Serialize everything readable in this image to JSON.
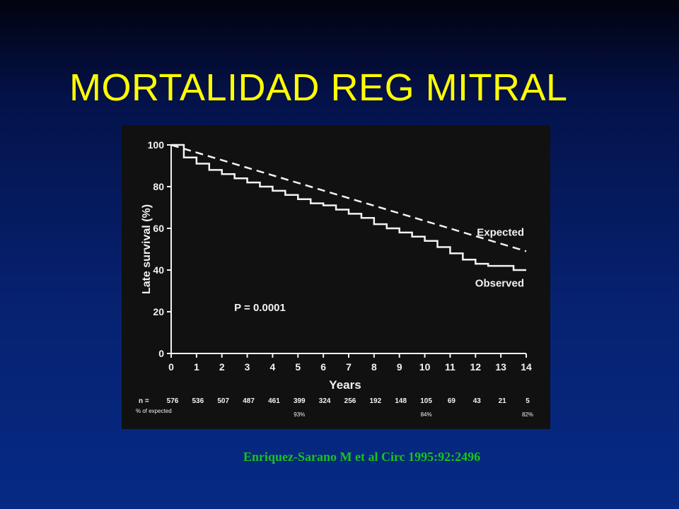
{
  "slide": {
    "title": "MORTALIDAD REG MITRAL",
    "citation": "Enriquez-Sarano  M et al Circ 1995:92:2496"
  },
  "colors": {
    "title": "#ffff00",
    "citation": "#19c419",
    "chart_background": "#111111",
    "chart_ink": "#f2f2f2"
  },
  "chart_data": {
    "type": "line",
    "xlabel": "Years",
    "ylabel": "Late survival (%)",
    "xlim": [
      0,
      14
    ],
    "ylim": [
      0,
      100
    ],
    "x_ticks": [
      0,
      1,
      2,
      3,
      4,
      5,
      6,
      7,
      8,
      9,
      10,
      11,
      12,
      13,
      14
    ],
    "y_ticks": [
      0,
      20,
      40,
      60,
      80,
      100
    ],
    "grid": false,
    "series": [
      {
        "name": "Expected",
        "style": "dashed",
        "x": [
          0,
          14
        ],
        "y": [
          100,
          49
        ]
      },
      {
        "name": "Observed",
        "style": "step",
        "x": [
          0,
          0.5,
          1,
          1.5,
          2,
          2.5,
          3,
          3.5,
          4,
          4.5,
          5,
          5.5,
          6,
          6.5,
          7,
          7.5,
          8,
          8.5,
          9,
          9.5,
          10,
          10.5,
          11,
          11.5,
          12,
          12.5,
          13,
          13.5,
          14
        ],
        "y": [
          100,
          94,
          91,
          88,
          86,
          84,
          82,
          80,
          78,
          76,
          74,
          72,
          71,
          69,
          67,
          65,
          62,
          60,
          58,
          56,
          54,
          51,
          48,
          45,
          43,
          42,
          42,
          40,
          40
        ]
      }
    ],
    "annotations": [
      {
        "text": "P = 0.0001",
        "x": 3.5,
        "y": 22
      }
    ],
    "risk_table": {
      "n_label": "n =",
      "n_at_risk": [
        "576",
        "536",
        "507",
        "487",
        "461",
        "399",
        "324",
        "256",
        "192",
        "148",
        "105",
        "69",
        "43",
        "21",
        "5"
      ],
      "pct_label": "% of expected",
      "pct_of_expected": [
        {
          "year": 5,
          "value": "93%"
        },
        {
          "year": 10,
          "value": "84%"
        },
        {
          "year": 14,
          "value": "82%"
        }
      ]
    }
  }
}
